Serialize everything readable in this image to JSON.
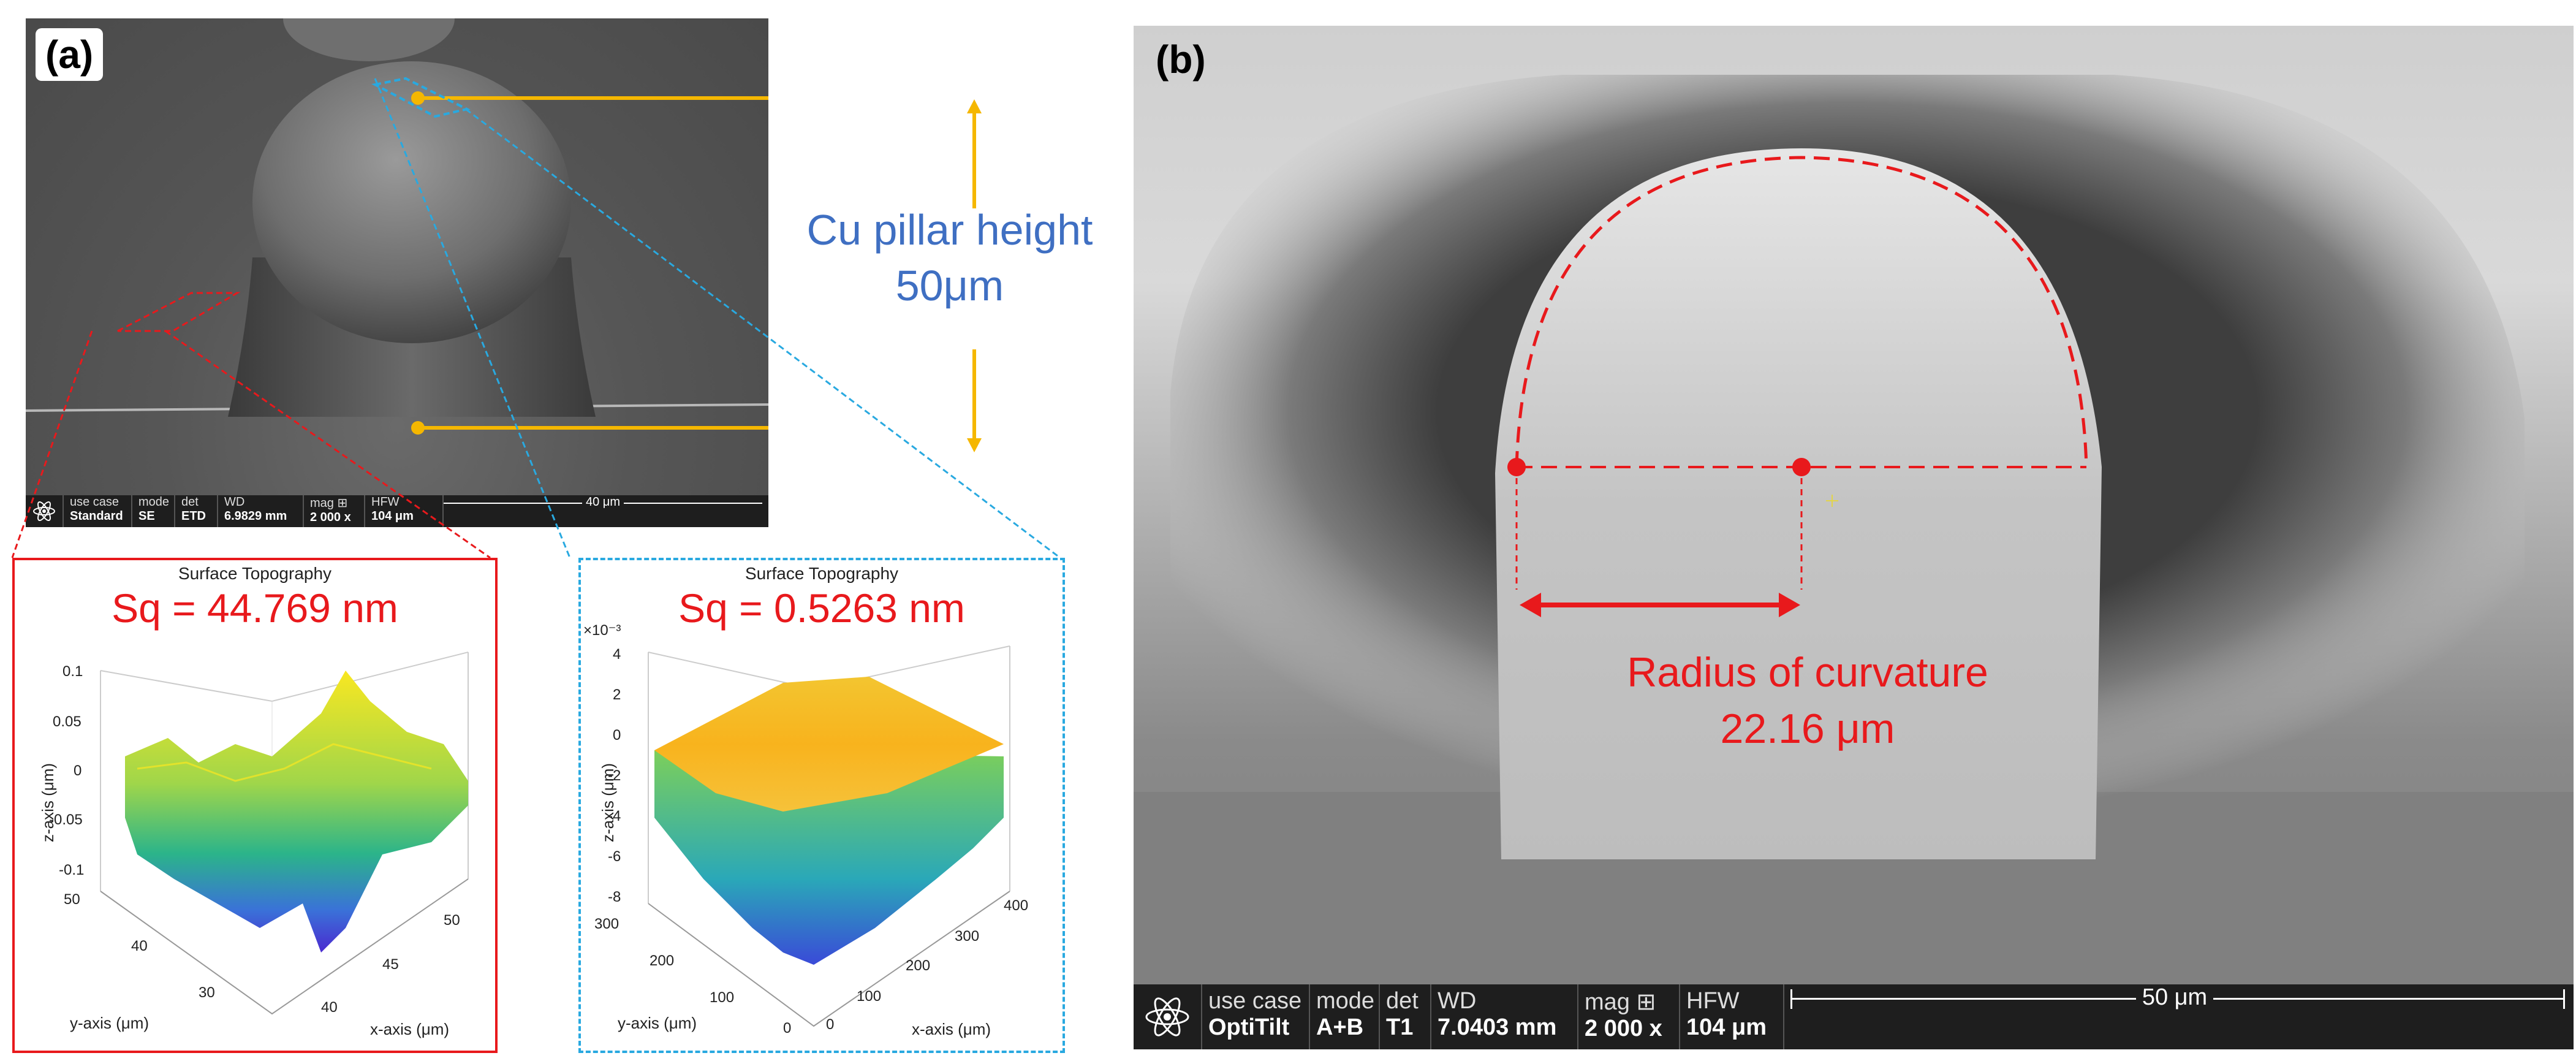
{
  "panel_a": {
    "label": "(a)",
    "callout_line1": "Cu pillar height",
    "callout_line2": "50μm",
    "status": {
      "use_case_key": "use case",
      "use_case_val": "Standard",
      "mode_key": "mode",
      "mode_val": "SE",
      "det_key": "det",
      "det_val": "ETD",
      "wd_key": "WD",
      "wd_val": "6.9829 mm",
      "mag_key": "mag ⊞",
      "mag_val": "2 000 x",
      "hfw_key": "HFW",
      "hfw_val": "104 μm",
      "scale": "40 μm"
    },
    "plot_left": {
      "title": "Surface Topography",
      "sq": "Sq = 44.769 nm",
      "zlabel": "z-axis (μm)",
      "ylabel": "y-axis (μm)",
      "xlabel": "x-axis (μm)",
      "zticks": [
        "0.1",
        "0.05",
        "0",
        "-0.05",
        "-0.1"
      ],
      "yticks": [
        "50",
        "40",
        "30"
      ],
      "xticks": [
        "40",
        "45",
        "50"
      ]
    },
    "plot_right": {
      "title": "Surface Topography",
      "sq": "Sq = 0.5263 nm",
      "zexp": "×10⁻³",
      "zlabel": "z-axis (μm)",
      "ylabel": "y-axis (μm)",
      "xlabel": "x-axis (μm)",
      "zticks": [
        "4",
        "2",
        "0",
        "-2",
        "-4",
        "-6",
        "-8"
      ],
      "yticks": [
        "300",
        "200",
        "100",
        "0"
      ],
      "xticks": [
        "0",
        "100",
        "200",
        "300",
        "400"
      ]
    }
  },
  "panel_b": {
    "label": "(b)",
    "rc_line1": "Radius of curvature",
    "rc_line2": "22.16 μm",
    "status": {
      "use_case_key": "use case",
      "use_case_val": "OptiTilt",
      "mode_key": "mode",
      "mode_val": "A+B",
      "det_key": "det",
      "det_val": "T1",
      "wd_key": "WD",
      "wd_val": "7.0403 mm",
      "mag_key": "mag ⊞",
      "mag_val": "2 000 x",
      "hfw_key": "HFW",
      "hfw_val": "104 μm",
      "scale": "50 μm"
    }
  },
  "colors": {
    "callout_blue": "#3f6fc2",
    "annotation_red": "#e8191c",
    "bracket_yellow": "#f5b700",
    "cyan_dash": "#29a9e0"
  }
}
